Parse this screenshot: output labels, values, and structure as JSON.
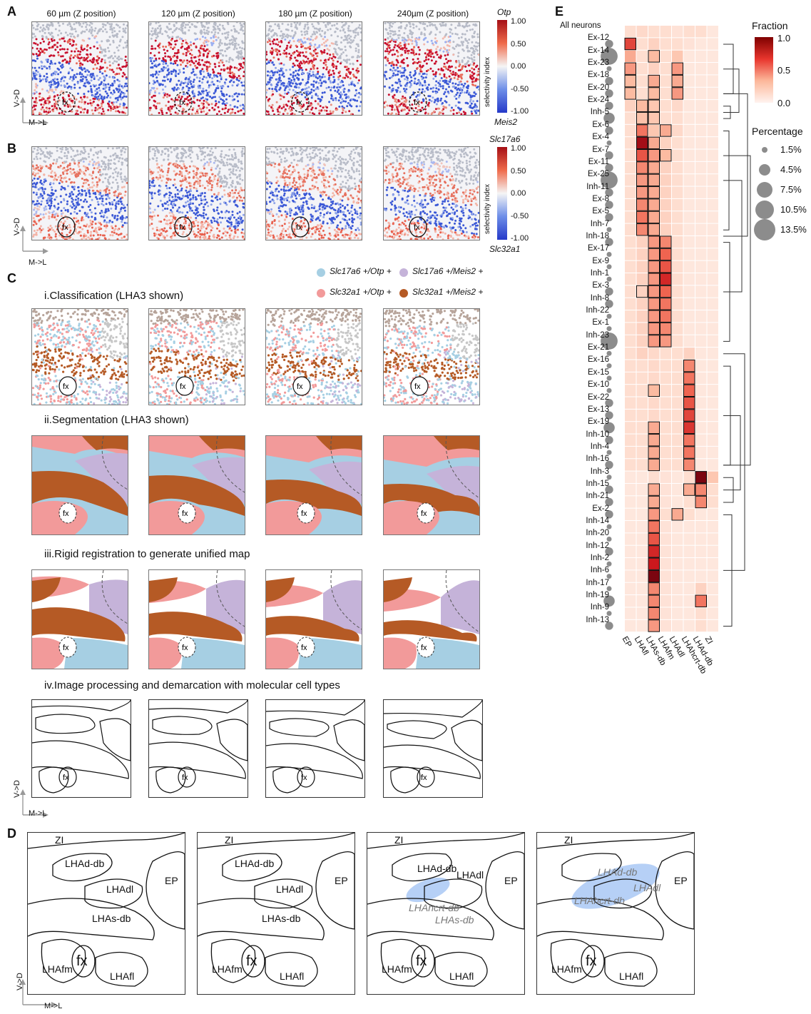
{
  "panels": {
    "A": {
      "label": "A",
      "titles": [
        "60 µm (Z position)",
        "120 µm (Z position)",
        "180 µm (Z position)",
        "240µm (Z position)"
      ],
      "colorbar": {
        "top_label": "Otp",
        "bottom_label": "Meis2",
        "axis_label": "selectivity index",
        "ticks": [
          "1.00",
          "0.50",
          "0.00",
          "-0.50",
          "-1.00"
        ]
      },
      "fx": "fx"
    },
    "B": {
      "label": "B",
      "colorbar": {
        "top_label": "Slc17a6",
        "bottom_label": "Slc32a1",
        "axis_label": "selectivity index",
        "ticks": [
          "1.00",
          "0.50",
          "0.00",
          "-0.50",
          "-1.00"
        ]
      },
      "fx": "fx"
    },
    "C": {
      "label": "C",
      "legend": [
        {
          "label": "Slc17a6 +/Otp +",
          "color": "#a6cfe3"
        },
        {
          "label": "Slc17a6 +/Meis2 +",
          "color": "#c5b3d9"
        },
        {
          "label": "Slc32a1 +/Otp +",
          "color": "#f29a9a"
        },
        {
          "label": "Slc32a1 +/Meis2 +",
          "color": "#b55a25"
        }
      ],
      "steps": [
        "i.Classification (LHA3 shown)",
        "ii.Segmentation (LHA3 shown)",
        "iii.Rigid registration to generate unified map",
        "iv.Image processing and demarcation with molecular cell types"
      ],
      "fx": "fx"
    },
    "D": {
      "label": "D",
      "maps": [
        {
          "labels": [
            "ZI",
            "LHAd-db",
            "LHAdl",
            "EP",
            "LHAs-db",
            "fx",
            "LHAfm",
            "LHAfl"
          ]
        },
        {
          "labels": [
            "ZI",
            "LHAd-db",
            "LHAdl",
            "EP",
            "LHAs-db",
            "fx",
            "LHAfm",
            "LHAfl"
          ]
        },
        {
          "labels": [
            "ZI",
            "LHAd-db",
            "LHAdl",
            "EP",
            "LHAhcrt-db",
            "LHAs-db",
            "fx",
            "LHAfm",
            "LHAfl"
          ]
        },
        {
          "labels": [
            "ZI",
            "LHAd-db",
            "LHAdl",
            "EP",
            "LHAhcrt-db",
            "fx",
            "LHAfm",
            "LHAfl"
          ]
        }
      ]
    },
    "E": {
      "label": "E",
      "legend_fraction_title": "Fraction",
      "fraction_ticks": [
        "1.0",
        "0.5",
        "0.0"
      ],
      "legend_percentage_title": "Percentage",
      "percentages": [
        "1.5%",
        "4.5%",
        "7.5%",
        "10.5%",
        "13.5%"
      ]
    }
  },
  "axes_labels": {
    "vd": "V->D",
    "ml": "M->L"
  },
  "colors": {
    "red": "#b2182b",
    "blue": "#2b4fd6",
    "brown": "#b55a25",
    "pink": "#f29a9a",
    "lightblue": "#a6cfe3",
    "lavender": "#c5b3d9",
    "hcrt": "#a9c8f5"
  },
  "chart_data": {
    "type": "heatmap",
    "title": "",
    "rows": [
      "All neurons",
      "Ex-12",
      "Ex-14",
      "Ex-23",
      "Ex-18",
      "Ex-20",
      "Ex-24",
      "Inh-5",
      "Ex-6",
      "Ex-4",
      "Ex-7",
      "Ex-11",
      "Ex-25",
      "Inh-11",
      "Ex-8",
      "Ex-5",
      "Inh-7",
      "Inh-18",
      "Ex-17",
      "Ex-9",
      "Inh-1",
      "Ex-3",
      "Inh-8",
      "Inh-22",
      "Ex-1",
      "Inh-23",
      "Ex-21",
      "Ex-16",
      "Ex-15",
      "Ex-10",
      "Ex-22",
      "Ex-13",
      "Ex-19",
      "Inh-10",
      "Inh-4",
      "Inh-16",
      "Inh-3",
      "Inh-15",
      "Inh-21",
      "Ex-2",
      "Inh-14",
      "Inh-20",
      "Inh-12",
      "Inh-2",
      "Inh-6",
      "Inh-17",
      "Inh-19",
      "Inh-9",
      "Inh-13"
    ],
    "columns": [
      "EP",
      "LHAfl",
      "LHAs-db",
      "LHAfm",
      "LHAdl",
      "LHAhcrt-db",
      "LHAd-db",
      "ZI"
    ],
    "value_range": [
      0.0,
      1.0
    ],
    "percentage": [
      0,
      4.5,
      13.5,
      1.5,
      4.5,
      4.5,
      4.5,
      7.5,
      4.5,
      1.5,
      4.5,
      4.5,
      13.5,
      4.5,
      4.5,
      4.5,
      1.5,
      4.5,
      1.5,
      1.5,
      1.5,
      4.5,
      4.5,
      1.5,
      1.5,
      13.5,
      1.5,
      1.5,
      1.5,
      1.5,
      4.5,
      4.5,
      7.5,
      4.5,
      1.5,
      4.5,
      1.5,
      4.5,
      4.5,
      4.5,
      1.5,
      1.5,
      4.5,
      1.5,
      1.5,
      1.5,
      7.5,
      1.5,
      4.5
    ],
    "values": [
      [
        0.1,
        0.12,
        0.1,
        0.1,
        0.08,
        0.1,
        0.1,
        0.06
      ],
      [
        0.6,
        0.1,
        0.15,
        0.1,
        0.1,
        0.08,
        0.06,
        0.06
      ],
      [
        0.3,
        0.1,
        0.25,
        0.1,
        0.2,
        0.06,
        0.06,
        0.06
      ],
      [
        0.35,
        0.1,
        0.15,
        0.1,
        0.35,
        0.06,
        0.06,
        0.06
      ],
      [
        0.25,
        0.1,
        0.3,
        0.1,
        0.3,
        0.06,
        0.06,
        0.06
      ],
      [
        0.25,
        0.1,
        0.25,
        0.1,
        0.35,
        0.06,
        0.06,
        0.06
      ],
      [
        0.15,
        0.25,
        0.2,
        0.1,
        0.12,
        0.06,
        0.06,
        0.06
      ],
      [
        0.1,
        0.22,
        0.2,
        0.1,
        0.1,
        0.06,
        0.06,
        0.06
      ],
      [
        0.1,
        0.45,
        0.2,
        0.3,
        0.12,
        0.06,
        0.06,
        0.06
      ],
      [
        0.1,
        0.85,
        0.3,
        0.15,
        0.1,
        0.06,
        0.06,
        0.06
      ],
      [
        0.1,
        0.55,
        0.35,
        0.25,
        0.1,
        0.06,
        0.06,
        0.06
      ],
      [
        0.1,
        0.4,
        0.3,
        0.15,
        0.1,
        0.06,
        0.06,
        0.06
      ],
      [
        0.1,
        0.35,
        0.3,
        0.15,
        0.1,
        0.06,
        0.06,
        0.06
      ],
      [
        0.1,
        0.35,
        0.3,
        0.15,
        0.1,
        0.06,
        0.06,
        0.06
      ],
      [
        0.1,
        0.4,
        0.3,
        0.15,
        0.1,
        0.06,
        0.06,
        0.06
      ],
      [
        0.1,
        0.45,
        0.3,
        0.15,
        0.1,
        0.06,
        0.06,
        0.06
      ],
      [
        0.1,
        0.4,
        0.3,
        0.15,
        0.1,
        0.06,
        0.06,
        0.06
      ],
      [
        0.1,
        0.15,
        0.35,
        0.4,
        0.1,
        0.06,
        0.06,
        0.06
      ],
      [
        0.1,
        0.15,
        0.35,
        0.5,
        0.1,
        0.06,
        0.06,
        0.06
      ],
      [
        0.1,
        0.15,
        0.35,
        0.55,
        0.1,
        0.06,
        0.06,
        0.06
      ],
      [
        0.1,
        0.15,
        0.35,
        0.7,
        0.1,
        0.06,
        0.06,
        0.06
      ],
      [
        0.1,
        0.15,
        0.35,
        0.5,
        0.1,
        0.06,
        0.06,
        0.06
      ],
      [
        0.1,
        0.15,
        0.35,
        0.45,
        0.1,
        0.06,
        0.06,
        0.06
      ],
      [
        0.1,
        0.15,
        0.35,
        0.45,
        0.1,
        0.06,
        0.06,
        0.06
      ],
      [
        0.1,
        0.15,
        0.35,
        0.4,
        0.1,
        0.06,
        0.06,
        0.06
      ],
      [
        0.1,
        0.15,
        0.35,
        0.35,
        0.1,
        0.06,
        0.06,
        0.06
      ],
      [
        0.1,
        0.15,
        0.12,
        0.1,
        0.1,
        0.15,
        0.06,
        0.06
      ],
      [
        0.1,
        0.1,
        0.12,
        0.1,
        0.1,
        0.4,
        0.06,
        0.06
      ],
      [
        0.1,
        0.1,
        0.12,
        0.1,
        0.1,
        0.45,
        0.06,
        0.06
      ],
      [
        0.1,
        0.1,
        0.25,
        0.1,
        0.1,
        0.5,
        0.06,
        0.06
      ],
      [
        0.1,
        0.1,
        0.12,
        0.1,
        0.1,
        0.55,
        0.06,
        0.06
      ],
      [
        0.1,
        0.1,
        0.12,
        0.1,
        0.1,
        0.6,
        0.06,
        0.06
      ],
      [
        0.1,
        0.1,
        0.3,
        0.1,
        0.1,
        0.65,
        0.06,
        0.06
      ],
      [
        0.1,
        0.1,
        0.3,
        0.1,
        0.1,
        0.45,
        0.06,
        0.06
      ],
      [
        0.1,
        0.1,
        0.3,
        0.1,
        0.1,
        0.45,
        0.06,
        0.06
      ],
      [
        0.1,
        0.1,
        0.3,
        0.1,
        0.1,
        0.4,
        0.06,
        0.06
      ],
      [
        0.06,
        0.06,
        0.1,
        0.08,
        0.06,
        0.1,
        0.95,
        0.2
      ],
      [
        0.06,
        0.06,
        0.3,
        0.08,
        0.06,
        0.3,
        0.4,
        0.1
      ],
      [
        0.06,
        0.06,
        0.3,
        0.08,
        0.06,
        0.1,
        0.4,
        0.1
      ],
      [
        0.06,
        0.06,
        0.35,
        0.1,
        0.3,
        0.1,
        0.06,
        0.06
      ],
      [
        0.06,
        0.06,
        0.45,
        0.08,
        0.06,
        0.06,
        0.06,
        0.06
      ],
      [
        0.06,
        0.06,
        0.55,
        0.08,
        0.06,
        0.06,
        0.06,
        0.06
      ],
      [
        0.06,
        0.06,
        0.7,
        0.08,
        0.06,
        0.06,
        0.06,
        0.06
      ],
      [
        0.06,
        0.06,
        0.75,
        0.08,
        0.06,
        0.06,
        0.06,
        0.06
      ],
      [
        0.06,
        0.06,
        0.95,
        0.08,
        0.06,
        0.06,
        0.06,
        0.06
      ],
      [
        0.06,
        0.06,
        0.4,
        0.08,
        0.06,
        0.06,
        0.15,
        0.06
      ],
      [
        0.06,
        0.06,
        0.4,
        0.08,
        0.06,
        0.06,
        0.45,
        0.06
      ],
      [
        0.06,
        0.06,
        0.4,
        0.08,
        0.06,
        0.06,
        0.1,
        0.06
      ],
      [
        0.06,
        0.06,
        0.35,
        0.08,
        0.06,
        0.06,
        0.1,
        0.06
      ]
    ],
    "outlined": [
      [],
      [
        0
      ],
      [
        2
      ],
      [
        0,
        4
      ],
      [
        0,
        2,
        4
      ],
      [
        0,
        2,
        4
      ],
      [
        1,
        2
      ],
      [
        1,
        2
      ],
      [
        1,
        3
      ],
      [
        1,
        2
      ],
      [
        1,
        2,
        3
      ],
      [
        1,
        2
      ],
      [
        1,
        2
      ],
      [
        1,
        2
      ],
      [
        1,
        2
      ],
      [
        1,
        2
      ],
      [
        1,
        2
      ],
      [
        2,
        3
      ],
      [
        2,
        3
      ],
      [
        2,
        3
      ],
      [
        2,
        3
      ],
      [
        1,
        2,
        3
      ],
      [
        2,
        3
      ],
      [
        2,
        3
      ],
      [
        2,
        3
      ],
      [
        2,
        3
      ],
      [],
      [
        5
      ],
      [
        5
      ],
      [
        2,
        5
      ],
      [
        5
      ],
      [
        5
      ],
      [
        2,
        5
      ],
      [
        2,
        5
      ],
      [
        2,
        5
      ],
      [
        2,
        5
      ],
      [
        6
      ],
      [
        2,
        5,
        6
      ],
      [
        2,
        6
      ],
      [
        2,
        4
      ],
      [
        2
      ],
      [
        2
      ],
      [
        2
      ],
      [
        2
      ],
      [
        2
      ],
      [
        2
      ],
      [
        2,
        6
      ],
      [
        2
      ],
      [
        2
      ]
    ]
  }
}
